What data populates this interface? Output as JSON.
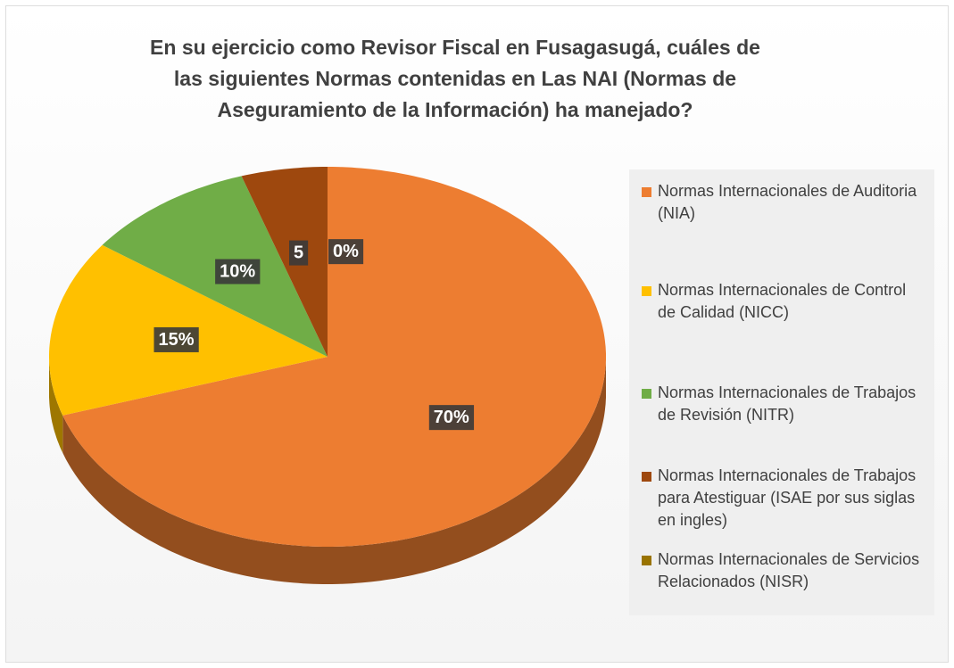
{
  "chart_data": {
    "type": "pie",
    "title": "En su ejercicio como Revisor Fiscal en Fusagasugá, cuáles de las siguientes Normas contenidas en Las NAI (Normas de Aseguramiento de la Información)  ha manejado?",
    "categories": [
      "Normas Internacionales de Auditoria (NIA)",
      "Normas Internacionales de Control de Calidad (NICC)",
      "Normas Internacionales de Trabajos de Revisión (NITR)",
      "Normas Internacionales de Trabajos para Atestiguar (ISAE por sus siglas en ingles)",
      "Normas Internacionales de Servicios Relacionados (NISR)"
    ],
    "values": [
      70,
      15,
      10,
      5,
      0
    ],
    "value_labels": [
      "70%",
      "15%",
      "10%",
      "5",
      "0%"
    ],
    "colors": [
      "#ed7d31",
      "#ffc000",
      "#70ad47",
      "#9e480e",
      "#997300"
    ],
    "legend": "right"
  }
}
